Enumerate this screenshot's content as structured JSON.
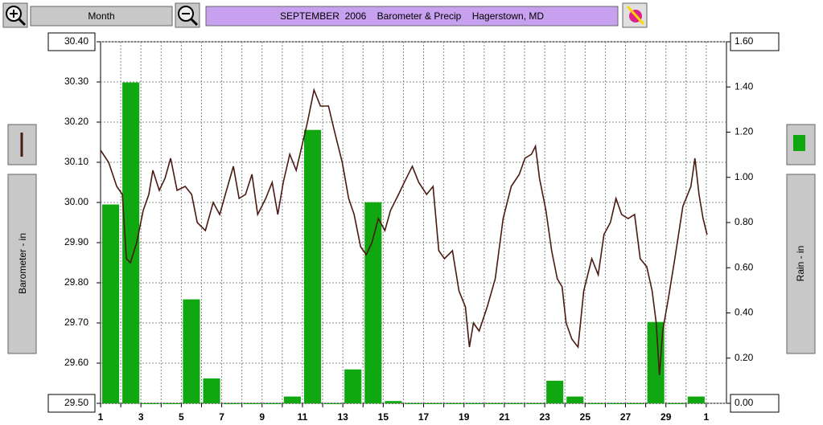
{
  "controls": {
    "period": "Month"
  },
  "chart_data": {
    "type": "combo",
    "title": "SEPTEMBER  2006    Barometer & Precip    Hagerstown, MD",
    "ylabel": "Barometer - in",
    "y2label": "Rain - in",
    "xlim": [
      1,
      32
    ],
    "xticks": [
      1,
      {
        "value": 2,
        "label": null
      },
      3,
      {
        "value": 4,
        "label": null
      },
      5,
      {
        "value": 6,
        "label": null
      },
      7,
      {
        "value": 8,
        "label": null
      },
      9,
      {
        "value": 10,
        "label": null
      },
      11,
      {
        "value": 12,
        "label": null
      },
      13,
      {
        "value": 14,
        "label": null
      },
      15,
      {
        "value": 16,
        "label": null
      },
      17,
      {
        "value": 18,
        "label": null
      },
      19,
      {
        "value": 20,
        "label": null
      },
      21,
      {
        "value": 22,
        "label": null
      },
      23,
      {
        "value": 24,
        "label": null
      },
      25,
      {
        "value": 26,
        "label": null
      },
      27,
      {
        "value": 28,
        "label": null
      },
      29,
      {
        "value": 30,
        "label": null
      },
      {
        "value": 31,
        "label": "1"
      }
    ],
    "ylim": [
      29.5,
      30.4
    ],
    "yticks": [
      {
        "value": 29.5,
        "label": "29.50"
      },
      {
        "value": 29.6,
        "label": "29.60"
      },
      {
        "value": 29.7,
        "label": "29.70"
      },
      {
        "value": 29.8,
        "label": "29.80"
      },
      {
        "value": 29.9,
        "label": "29.90"
      },
      {
        "value": 30.0,
        "label": "30.00"
      },
      {
        "value": 30.1,
        "label": "30.10"
      },
      {
        "value": 30.2,
        "label": "30.20"
      },
      {
        "value": 30.3,
        "label": "30.30"
      },
      {
        "value": 30.4,
        "label": "30.40"
      }
    ],
    "y2lim": [
      0,
      1.6
    ],
    "y2ticks": [
      {
        "value": 0,
        "label": "0.00"
      },
      {
        "value": 0.2,
        "label": "0.20"
      },
      {
        "value": 0.4,
        "label": "0.40"
      },
      {
        "value": 0.6,
        "label": "0.60"
      },
      {
        "value": 0.8,
        "label": "0.80"
      },
      {
        "value": 1.0,
        "label": "1.00"
      },
      {
        "value": 1.2,
        "label": "1.20"
      },
      {
        "value": 1.4,
        "label": "1.40"
      },
      {
        "value": 1.6,
        "label": "1.60"
      }
    ],
    "grid": true,
    "series": [
      {
        "type": "bar",
        "axis": "y2",
        "color": "#10a810",
        "x": [
          1,
          2,
          3,
          4,
          5,
          6,
          7,
          8,
          9,
          10,
          11,
          12,
          13,
          14,
          15,
          16,
          17,
          18,
          19,
          20,
          21,
          22,
          23,
          24,
          25,
          26,
          27,
          28,
          29,
          30
        ],
        "values": [
          0.88,
          1.42,
          0,
          0,
          0.46,
          0.11,
          0,
          0,
          0,
          0.03,
          1.21,
          0,
          0.15,
          0.89,
          0.01,
          0,
          0,
          0,
          0,
          0,
          0,
          0,
          0.1,
          0.03,
          0,
          0,
          0,
          0.36,
          0,
          0.03
        ]
      },
      {
        "type": "line",
        "color": "#4a1a10",
        "x": [
          1.0,
          1.4,
          1.8,
          2.08,
          2.28,
          2.48,
          2.79,
          3.11,
          3.39,
          3.59,
          3.91,
          4.19,
          4.47,
          4.79,
          5.19,
          5.51,
          5.79,
          6.19,
          6.58,
          6.9,
          7.18,
          7.58,
          7.86,
          8.18,
          8.5,
          8.78,
          9.18,
          9.5,
          9.78,
          10.05,
          10.37,
          10.69,
          10.97,
          11.25,
          11.57,
          11.89,
          12.29,
          12.57,
          12.97,
          13.29,
          13.56,
          13.88,
          14.16,
          14.44,
          14.76,
          15.08,
          15.36,
          15.76,
          16.04,
          16.44,
          16.76,
          17.15,
          17.47,
          17.75,
          18.03,
          18.43,
          18.75,
          19.07,
          19.27,
          19.47,
          19.75,
          20.15,
          20.55,
          20.94,
          21.34,
          21.74,
          22.02,
          22.34,
          22.54,
          22.74,
          23.06,
          23.34,
          23.62,
          23.86,
          24.06,
          24.34,
          24.65,
          24.93,
          25.33,
          25.65,
          25.93,
          26.25,
          26.53,
          26.81,
          27.13,
          27.45,
          27.73,
          28.05,
          28.32,
          28.52,
          28.68,
          28.84,
          29.12,
          29.44,
          29.84,
          30.24,
          30.44,
          30.64,
          30.84,
          31.04
        ],
        "values": [
          30.13,
          30.1,
          30.04,
          30.02,
          29.86,
          29.85,
          29.9,
          29.98,
          30.02,
          30.08,
          30.03,
          30.06,
          30.11,
          30.03,
          30.04,
          30.02,
          29.95,
          29.93,
          30.0,
          29.97,
          30.02,
          30.09,
          30.01,
          30.02,
          30.07,
          29.97,
          30.01,
          30.05,
          29.97,
          30.05,
          30.12,
          30.08,
          30.14,
          30.2,
          30.28,
          30.24,
          30.24,
          30.18,
          30.1,
          30.01,
          29.97,
          29.89,
          29.87,
          29.9,
          29.96,
          29.93,
          29.98,
          30.02,
          30.05,
          30.09,
          30.05,
          30.02,
          30.04,
          29.88,
          29.86,
          29.88,
          29.78,
          29.74,
          29.64,
          29.7,
          29.68,
          29.74,
          29.81,
          29.96,
          30.04,
          30.07,
          30.11,
          30.12,
          30.14,
          30.06,
          29.98,
          29.88,
          29.81,
          29.79,
          29.7,
          29.66,
          29.64,
          29.78,
          29.86,
          29.82,
          29.92,
          29.95,
          30.01,
          29.97,
          29.96,
          29.97,
          29.86,
          29.84,
          29.78,
          29.7,
          29.57,
          29.68,
          29.76,
          29.86,
          29.99,
          30.04,
          30.11,
          30.02,
          29.96,
          29.92
        ]
      }
    ]
  }
}
